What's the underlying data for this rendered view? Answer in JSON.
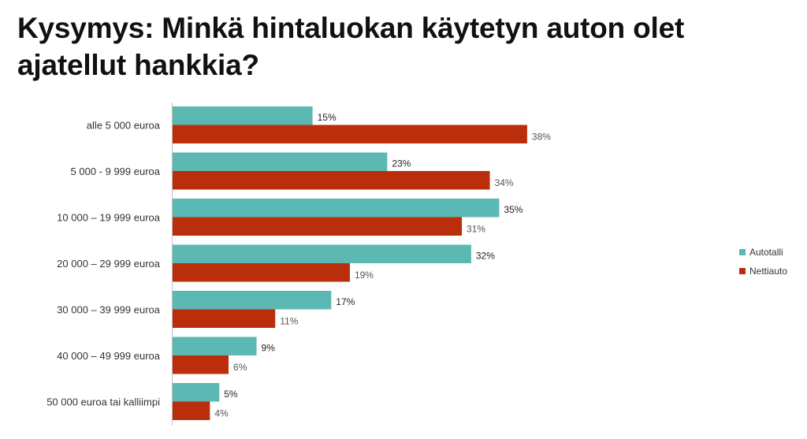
{
  "title": "Kysymys: Minkä hintaluokan käytetyn auton olet ajatellut hankkia?",
  "chart_data": {
    "type": "bar",
    "orientation": "horizontal",
    "categories": [
      "alle 5 000 euroa",
      "5 000 - 9 999 euroa",
      "10 000 – 19 999 euroa",
      "20 000 – 29 999 euroa",
      "30 000 – 39 999 euroa",
      "40 000 – 49 999 euroa",
      "50 000 euroa tai kalliimpi"
    ],
    "series": [
      {
        "name": "Autotalli",
        "color": "#5BB8B2",
        "values": [
          15,
          23,
          35,
          32,
          17,
          9,
          5
        ]
      },
      {
        "name": "Nettiauto",
        "color": "#BB2E0C",
        "values": [
          38,
          34,
          31,
          19,
          11,
          6,
          4
        ]
      }
    ],
    "value_suffix": "%",
    "xlim": [
      0,
      40
    ],
    "grid": false,
    "legend_position": "right"
  }
}
